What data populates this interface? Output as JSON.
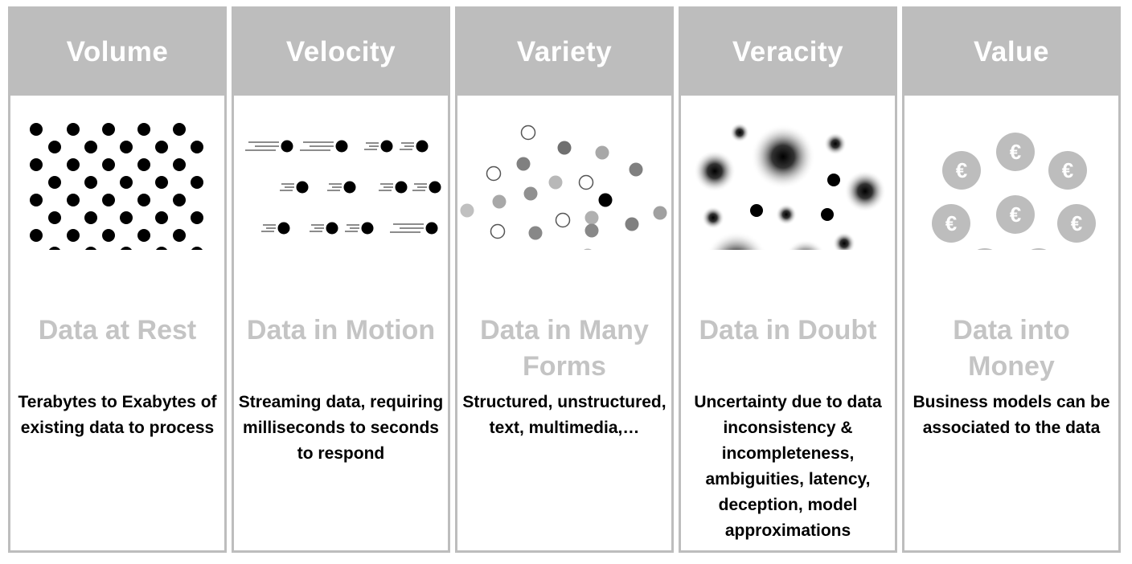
{
  "columns": [
    {
      "key": "volume",
      "title": "Volume",
      "subtitle": "Data at Rest",
      "description": "Terabytes to Exabytes of existing data to process"
    },
    {
      "key": "velocity",
      "title": "Velocity",
      "subtitle": "Data in Motion",
      "description": "Streaming data, requiring milliseconds to seconds to respond"
    },
    {
      "key": "variety",
      "title": "Variety",
      "subtitle": "Data in Many Forms",
      "description": "Structured, unstructured, text, multimedia,…"
    },
    {
      "key": "veracity",
      "title": "Veracity",
      "subtitle": "Data in Doubt",
      "description": "Uncertainty due to data inconsistency & incompleteness, ambiguities, latency, deception, model approximations"
    },
    {
      "key": "value",
      "title": "Value",
      "subtitle": "Data into Money",
      "description": "Business models can be associated to the data"
    }
  ],
  "icons": {
    "volume": "dot-grid-icon",
    "velocity": "moving-dots-icon",
    "variety": "mixed-dots-icon",
    "veracity": "blurred-dots-icon",
    "value": "euro-coins-icon"
  },
  "value_symbol": "€",
  "colors": {
    "header": "#bdbdbd",
    "border": "#bdbdbd",
    "subtitle": "#c4c4c4",
    "dot": "#000000"
  }
}
